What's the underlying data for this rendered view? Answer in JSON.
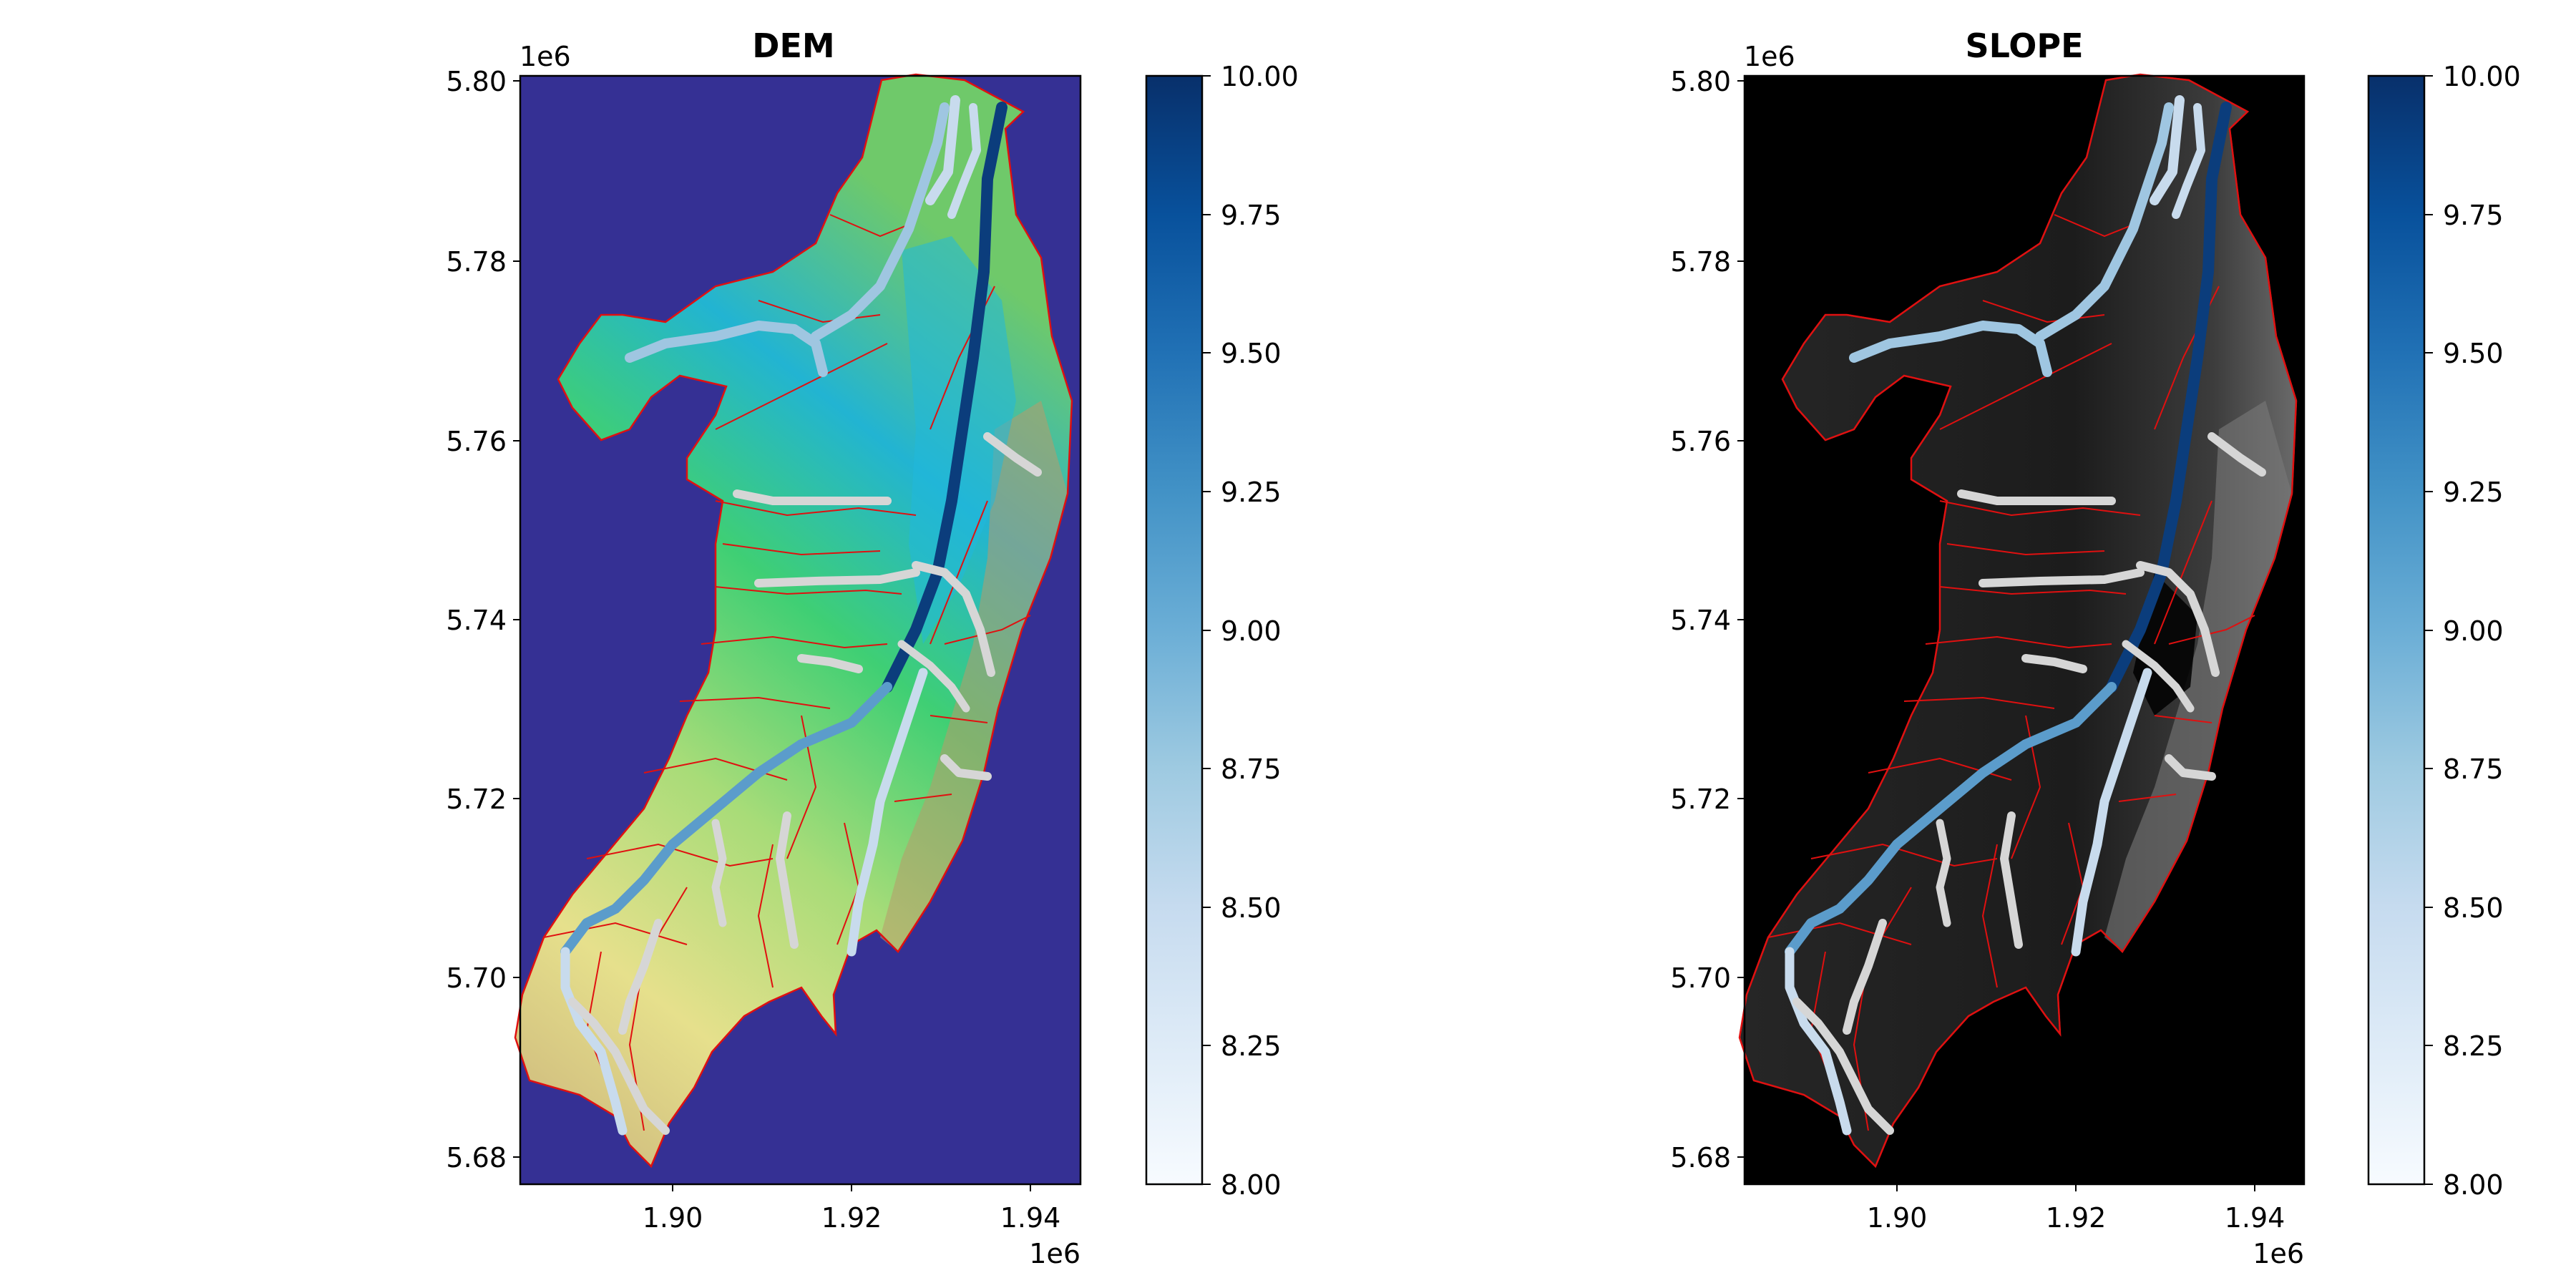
{
  "figure": {
    "panels": [
      {
        "title": "DEM",
        "background_color": "#353094",
        "catchment_style": "terrain",
        "y_ticks": [
          "5.80",
          "5.78",
          "5.76",
          "5.74",
          "5.72",
          "5.70",
          "5.68"
        ],
        "y_offset": "1e6",
        "x_ticks": [
          "1.90",
          "1.92",
          "1.94"
        ],
        "x_offset": "1e6",
        "colorbar": {
          "ticks": [
            "10.00",
            "9.75",
            "9.50",
            "9.25",
            "9.00",
            "8.75",
            "8.50",
            "8.25",
            "8.00"
          ],
          "colormap": "Blues"
        }
      },
      {
        "title": "SLOPE",
        "background_color": "#000000",
        "catchment_style": "grayscale",
        "y_ticks": [
          "5.80",
          "5.78",
          "5.76",
          "5.74",
          "5.72",
          "5.70",
          "5.68"
        ],
        "y_offset": "1e6",
        "x_ticks": [
          "1.90",
          "1.92",
          "1.94"
        ],
        "x_offset": "1e6",
        "colorbar": {
          "ticks": [
            "10.00",
            "9.75",
            "9.50",
            "9.25",
            "9.00",
            "8.75",
            "8.50",
            "8.25",
            "8.00"
          ],
          "colormap": "Blues"
        }
      }
    ],
    "colors": {
      "subcatchment_boundaries": "#e01010",
      "colormap_low": "#f7fbff",
      "colormap_high": "#08306b"
    }
  }
}
